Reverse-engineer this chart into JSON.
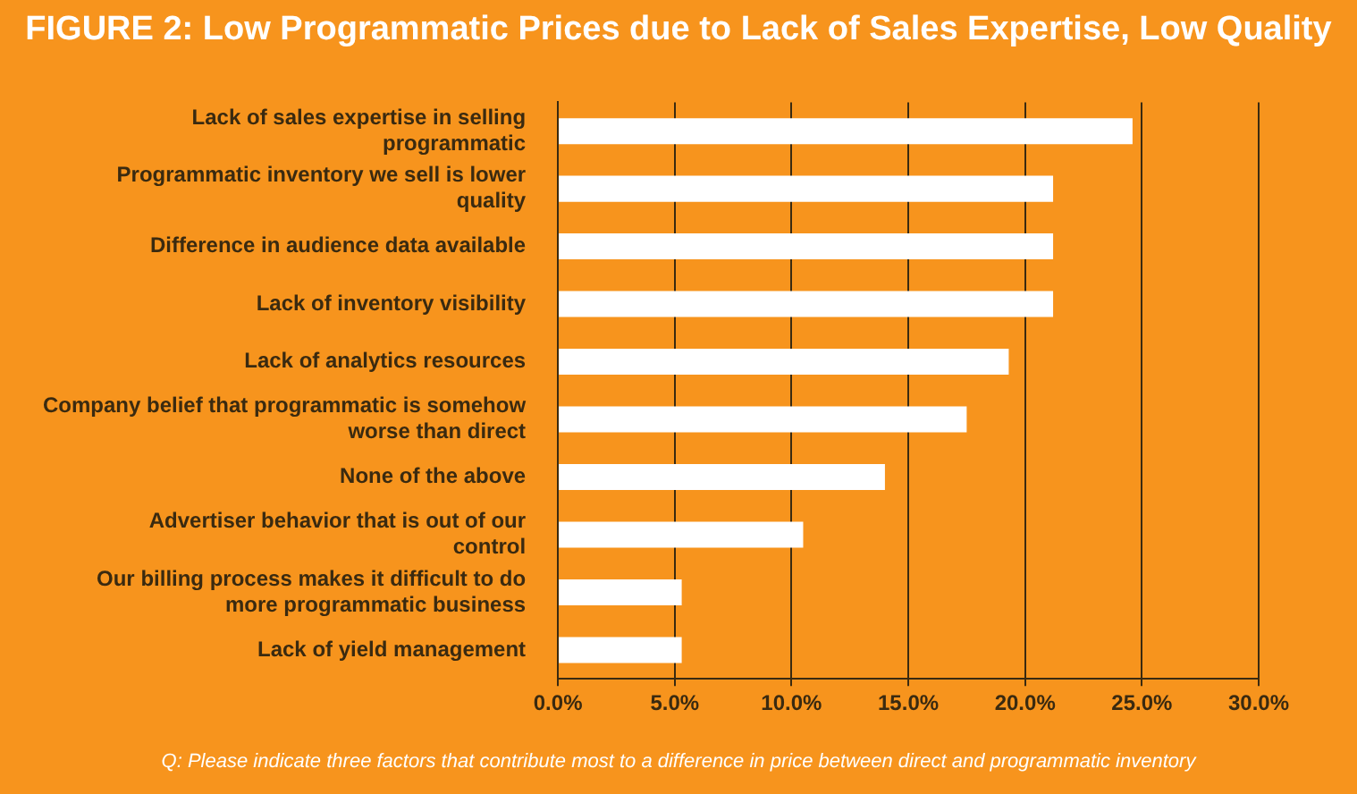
{
  "chart_data": {
    "type": "bar",
    "orientation": "horizontal",
    "title": "FIGURE 2: Low Programmatic Prices due to Lack of Sales Expertise, Low Quality",
    "categories": [
      "Lack of sales expertise in selling programmatic",
      "Programmatic inventory we sell is lower quality",
      "Difference in audience data available",
      "Lack of inventory visibility",
      "Lack of analytics resources",
      "Company belief that programmatic is somehow worse than direct",
      "None of the above",
      "Advertiser behavior that is out of our control",
      "Our billing process makes it difficult to do more programmatic business",
      "Lack of yield management"
    ],
    "values": [
      24.6,
      21.2,
      21.2,
      21.2,
      19.3,
      17.5,
      14.0,
      10.5,
      5.3,
      5.3
    ],
    "color": "#ffffff",
    "xlim": [
      0,
      30
    ],
    "xticks": [
      {
        "value": 0,
        "label": "0.0%"
      },
      {
        "value": 5,
        "label": "5.0%"
      },
      {
        "value": 10,
        "label": "10.0%"
      },
      {
        "value": 15,
        "label": "15.0%"
      },
      {
        "value": 20,
        "label": "20.0%"
      },
      {
        "value": 25,
        "label": "25.0%"
      },
      {
        "value": 30,
        "label": "30.0%"
      }
    ],
    "grid": "x",
    "annotations": [
      "Q: Please indicate three factors that contribute most to a difference in price between direct and programmatic inventory"
    ]
  }
}
